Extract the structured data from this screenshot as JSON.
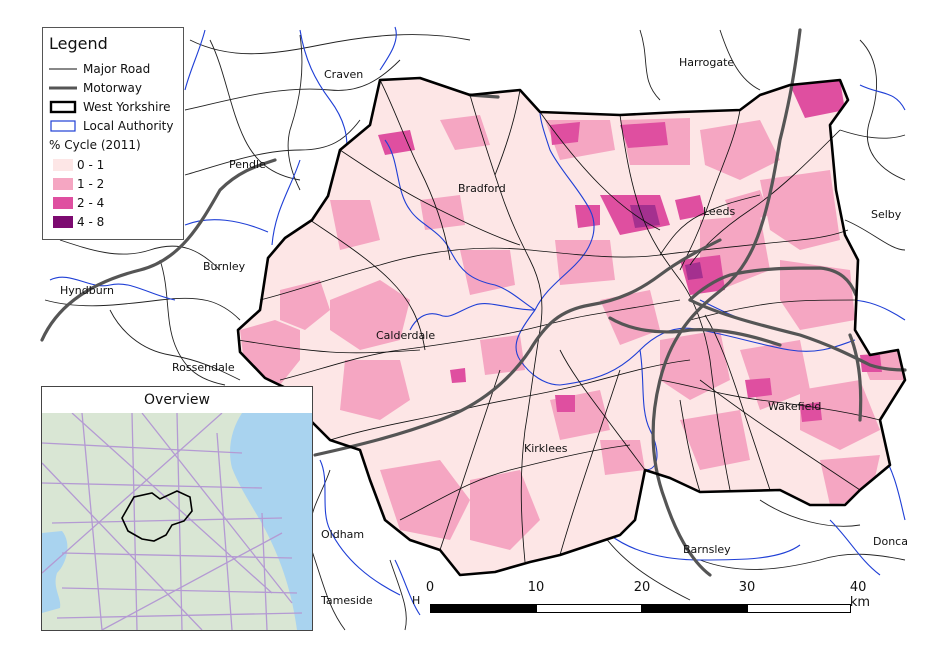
{
  "legend": {
    "title": "Legend",
    "major_road": "Major Road",
    "motorway": "Motorway",
    "west_yorkshire": "West Yorkshire",
    "local_authority": "Local Authority",
    "cycle_title": "% Cycle (2011)",
    "classes": [
      {
        "label": "0 - 1",
        "color": "#fde6e6"
      },
      {
        "label": "1 - 2",
        "color": "#f5a6c2"
      },
      {
        "label": "2 - 4",
        "color": "#df4fa0"
      },
      {
        "label": "4 - 8",
        "color": "#7c0a70"
      }
    ]
  },
  "places": {
    "craven": "Craven",
    "harrogate": "Harrogate",
    "pendle": "Pendle",
    "bradford": "Bradford",
    "leeds": "Leeds",
    "selby": "Selby",
    "burnley": "Burnley",
    "hyndburn": "Hyndburn",
    "calderdale": "Calderdale",
    "rossendale": "Rossendale",
    "wakefield": "Wakefield",
    "kirklees": "Kirklees",
    "oldham": "Oldham",
    "barnsley": "Barnsley",
    "tameside": "Tameside",
    "doncaster": "Donca",
    "h_label": "H"
  },
  "overview": {
    "title": "Overview"
  },
  "scalebar": {
    "labels": [
      "0",
      "10",
      "20",
      "30",
      "40 km"
    ]
  },
  "colors": {
    "boundary": "#000000",
    "local_authority": "#1f3fd6",
    "motorway": "#555555",
    "road": "#111111",
    "sea": "#a9d3ef",
    "land": "#d9e6d4",
    "overview_roads": "#b49ad3"
  }
}
